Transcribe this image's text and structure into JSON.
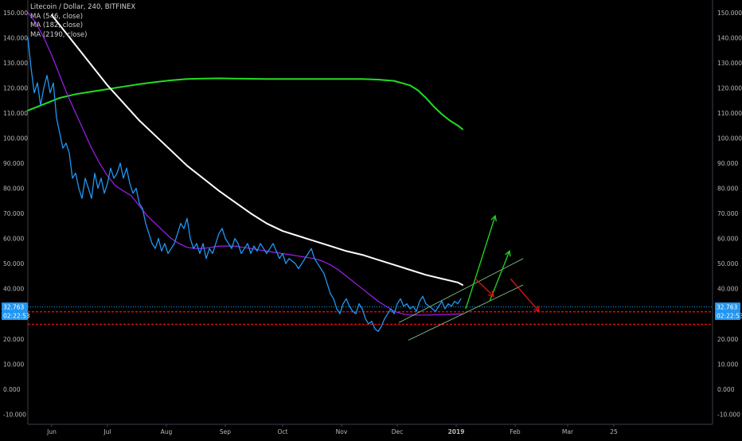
{
  "legend": {
    "title": "Litecoin / Dollar, 240, BITFINEX",
    "ma1": "MA (546, close)",
    "ma2": "MA (182, close)",
    "ma3": "MA (2190, close)"
  },
  "price_badge": {
    "price": "32.763",
    "countdown": "02:22:53"
  },
  "colors": {
    "background": "#000000",
    "frame": "#3a3f4b",
    "axis_text": "#b8b8b8",
    "price": "#2196f3",
    "ma_182": "#a020f0",
    "ma_546": "#ffffff",
    "ma_2190": "#22dd22",
    "support": "#e01010",
    "arrow_up": "#22cc22",
    "arrow_down": "#dd1111",
    "channel": "#8fd48f",
    "current_price_line": "#2196f3",
    "badge": "#2196f3"
  },
  "chart_data": {
    "type": "line",
    "title": "Litecoin / Dollar, 240, BITFINEX",
    "x_ticks": [
      "Jun",
      "Jul",
      "Aug",
      "Sep",
      "Oct",
      "Nov",
      "Dec",
      "2019",
      "Feb",
      "Mar",
      "25"
    ],
    "y_ticks": [
      "150.000",
      "140.000",
      "130.000",
      "120.000",
      "110.000",
      "100.000",
      "90.000",
      "80.000",
      "70.000",
      "60.000",
      "50.000",
      "40.000",
      "30.000",
      "20.000",
      "10.000",
      "0.000",
      "-10.000"
    ],
    "ylim": [
      -14,
      155
    ],
    "grid": false,
    "series": [
      {
        "name": "Litecoin / Dollar",
        "key": "price",
        "x": [
          0,
          4,
          8,
          12,
          16,
          20,
          24,
          28,
          32,
          36,
          40,
          44,
          48,
          52,
          56,
          60,
          64,
          68,
          72,
          76,
          80,
          84,
          88,
          92,
          96,
          100,
          104,
          108,
          112,
          116,
          120,
          124,
          128,
          132,
          136,
          140,
          144,
          148,
          152,
          156,
          160,
          164,
          168,
          172,
          176,
          180,
          184,
          188,
          192,
          196,
          200,
          204,
          208,
          212,
          216,
          220,
          224,
          228,
          232,
          236,
          240,
          244,
          248,
          252,
          256,
          260,
          264,
          268,
          272,
          276,
          280,
          284,
          288,
          292,
          296,
          300,
          304,
          308,
          312,
          316,
          320,
          324,
          328,
          332,
          336,
          340,
          344,
          348,
          352,
          356,
          360,
          364,
          368,
          372,
          376,
          380,
          384,
          388,
          392,
          396,
          400,
          404,
          408,
          412,
          416,
          420,
          424,
          428,
          432,
          436,
          440,
          444,
          448,
          452,
          456,
          460,
          464,
          468,
          472,
          476,
          480,
          484,
          488,
          492,
          496,
          500,
          504,
          508,
          512,
          516,
          520,
          524,
          528,
          532,
          536,
          540,
          544
        ],
        "y": [
          140,
          128,
          118,
          122,
          113,
          120,
          125,
          118,
          122,
          108,
          102,
          96,
          98,
          94,
          84,
          86,
          80,
          76,
          84,
          80,
          76,
          86,
          80,
          84,
          78,
          82,
          88,
          84,
          86,
          90,
          84,
          88,
          82,
          78,
          80,
          74,
          72,
          66,
          62,
          58,
          56,
          60,
          55,
          58,
          54,
          56,
          58,
          62,
          66,
          64,
          68,
          60,
          56,
          58,
          54,
          58,
          52,
          56,
          54,
          58,
          62,
          64,
          60,
          58,
          56,
          60,
          58,
          54,
          56,
          58,
          54,
          57,
          55,
          58,
          56,
          54,
          56,
          58,
          55,
          52,
          54,
          50,
          52,
          51,
          50,
          48,
          50,
          52,
          54,
          56,
          52,
          50,
          48,
          46,
          42,
          38,
          36,
          32,
          30,
          34,
          36,
          33,
          31,
          30,
          34,
          32,
          28,
          26,
          27,
          24,
          23,
          25,
          28,
          30,
          32,
          30,
          34,
          36,
          33,
          34,
          32,
          33,
          31,
          35,
          37,
          34,
          33,
          32,
          31,
          33,
          35,
          32,
          34,
          33,
          35,
          34,
          36
        ]
      },
      {
        "name": "MA (182, close)",
        "key": "ma_182",
        "x": [
          0,
          10,
          20,
          30,
          40,
          50,
          60,
          70,
          80,
          90,
          100,
          110,
          120,
          130,
          140,
          150,
          160,
          170,
          180,
          190,
          200,
          210,
          220,
          230,
          240,
          250,
          260,
          270,
          280,
          290,
          300,
          310,
          320,
          330,
          340,
          350,
          360,
          370,
          380,
          390,
          400,
          410,
          420,
          430,
          440,
          450,
          460,
          470,
          480,
          490,
          500,
          510,
          520,
          530,
          540,
          546
        ],
        "y": [
          150,
          146,
          140,
          133,
          125,
          117,
          110,
          103,
          96,
          90,
          85,
          81,
          79,
          77,
          73,
          69,
          66,
          63,
          60,
          58,
          56.5,
          56,
          56,
          56.5,
          57,
          57,
          57,
          56.5,
          56,
          55.5,
          55,
          54.5,
          54,
          53.5,
          53,
          52.5,
          52,
          51,
          49.5,
          47.5,
          45,
          42.5,
          40,
          37.5,
          35,
          33,
          31,
          30,
          29.5,
          29.5,
          29.5,
          29.6,
          29.7,
          29.8,
          29.9,
          30
        ]
      },
      {
        "name": "MA (546, close)",
        "key": "ma_546",
        "x": [
          30,
          40,
          60,
          80,
          100,
          120,
          140,
          160,
          180,
          200,
          220,
          240,
          260,
          280,
          300,
          320,
          340,
          360,
          380,
          400,
          420,
          440,
          460,
          480,
          500,
          520,
          540,
          546
        ],
        "y": [
          149,
          145,
          137,
          129,
          121,
          114,
          107,
          101,
          95,
          89,
          84,
          79,
          74.5,
          70,
          66,
          63,
          61,
          59,
          57,
          55,
          53.5,
          51.5,
          49.5,
          47.5,
          45.5,
          44,
          42.5,
          41.5
        ]
      },
      {
        "name": "MA (2190, close)",
        "key": "ma_2190",
        "x": [
          0,
          20,
          40,
          60,
          80,
          100,
          120,
          140,
          160,
          180,
          200,
          220,
          240,
          260,
          280,
          300,
          320,
          340,
          360,
          380,
          400,
          420,
          440,
          460,
          480,
          490,
          500,
          510,
          520,
          530,
          540,
          546
        ],
        "y": [
          111,
          113.5,
          116,
          117.5,
          118.5,
          119.5,
          120.5,
          121.5,
          122.3,
          123,
          123.5,
          123.7,
          123.8,
          123.7,
          123.6,
          123.5,
          123.5,
          123.5,
          123.5,
          123.5,
          123.5,
          123.5,
          123.3,
          122.8,
          121,
          119,
          116,
          112.5,
          109.5,
          107,
          105,
          103.5
        ]
      }
    ],
    "support_levels": [
      30.8,
      25.8
    ],
    "current_price": 32.763,
    "channel_lines": [
      {
        "x": [
          466,
          622
        ],
        "y": [
          26.5,
          52
        ]
      },
      {
        "x": [
          478,
          622
        ],
        "y": [
          19.5,
          41.5
        ]
      }
    ],
    "arrows": [
      {
        "kind": "up",
        "x": [
          550,
          587
        ],
        "y": [
          32,
          69
        ]
      },
      {
        "kind": "up",
        "x": [
          580,
          605
        ],
        "y": [
          35,
          55
        ]
      },
      {
        "kind": "down",
        "x": [
          562,
          585
        ],
        "y": [
          44,
          37
        ]
      },
      {
        "kind": "down",
        "x": [
          606,
          642
        ],
        "y": [
          44,
          31
        ]
      }
    ]
  }
}
